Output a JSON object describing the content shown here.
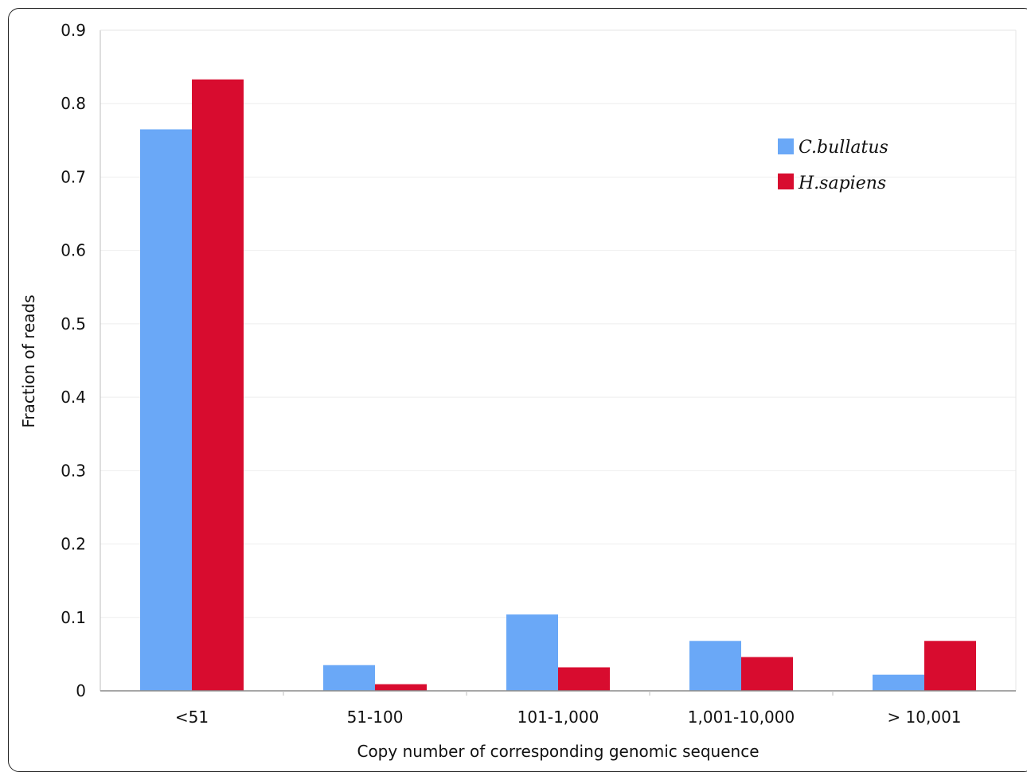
{
  "chart_data": {
    "type": "bar",
    "title": "",
    "xlabel": "Copy number of corresponding genomic sequence",
    "ylabel": "Fraction of reads",
    "categories": [
      "<51",
      "51-100",
      "101-1,000",
      "1,001-10,000",
      "> 10,001"
    ],
    "series": [
      {
        "name": "C.bullatus",
        "color": "#6aa8f7",
        "values": [
          0.765,
          0.035,
          0.104,
          0.068,
          0.022
        ]
      },
      {
        "name": "H.sapiens",
        "color": "#d80c2f",
        "values": [
          0.833,
          0.009,
          0.032,
          0.046,
          0.068
        ]
      }
    ],
    "ylim": [
      0,
      0.9
    ],
    "yticks": [
      "0",
      "0.1",
      "0.2",
      "0.3",
      "0.4",
      "0.5",
      "0.6",
      "0.7",
      "0.8",
      "0.9"
    ],
    "grid": true,
    "legend_position": "top-right"
  }
}
